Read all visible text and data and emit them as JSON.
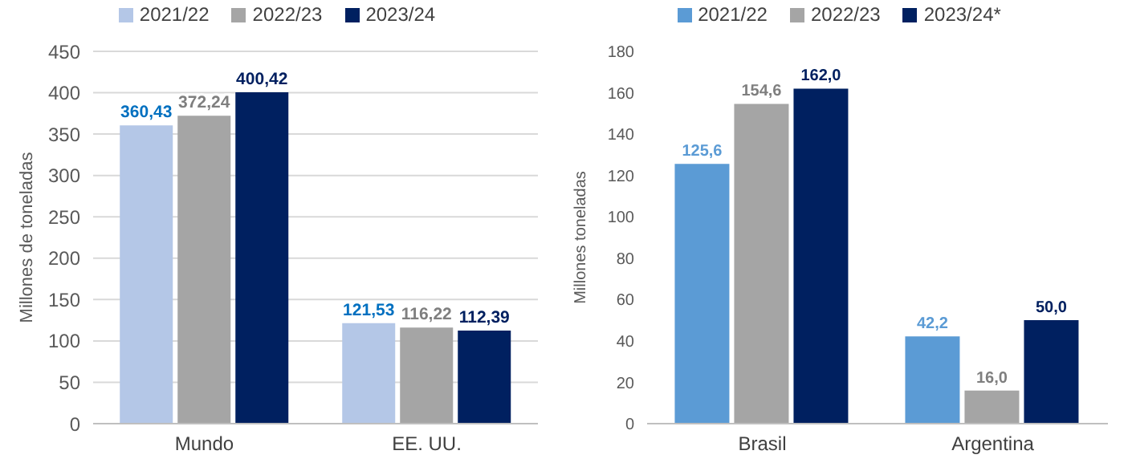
{
  "chart_data": [
    {
      "type": "bar",
      "ylabel": "Millones de toneladas",
      "categories": [
        "Mundo",
        "EE. UU."
      ],
      "series": [
        {
          "name": "2021/22",
          "color": "#b4c7e7",
          "values": [
            360.43,
            121.53
          ],
          "value_labels": [
            "360,43",
            "121,53"
          ]
        },
        {
          "name": "2022/23",
          "color": "#a5a5a5",
          "values": [
            372.24,
            116.22
          ],
          "value_labels": [
            "372,24",
            "116,22"
          ]
        },
        {
          "name": "2023/24",
          "color": "#002060",
          "values": [
            400.42,
            112.39
          ],
          "value_labels": [
            "400,42",
            "112,39"
          ]
        }
      ],
      "ylim": [
        0,
        450
      ],
      "yticks": [
        0,
        50,
        100,
        150,
        200,
        250,
        300,
        350,
        400,
        450
      ],
      "grid": "y",
      "legend": "top"
    },
    {
      "type": "bar",
      "ylabel": "Millones toneladas",
      "categories": [
        "Brasil",
        "Argentina"
      ],
      "series": [
        {
          "name": "2021/22",
          "color": "#5b9bd5",
          "values": [
            125.6,
            42.2
          ],
          "value_labels": [
            "125,6",
            "42,2"
          ]
        },
        {
          "name": "2022/23",
          "color": "#a5a5a5",
          "values": [
            154.6,
            16.0
          ],
          "value_labels": [
            "154,6",
            "16,0"
          ]
        },
        {
          "name": "2023/24*",
          "color": "#002060",
          "values": [
            162.0,
            50.0
          ],
          "value_labels": [
            "162,0",
            "50,0"
          ]
        }
      ],
      "ylim": [
        0,
        180
      ],
      "yticks": [
        0,
        20,
        40,
        60,
        80,
        100,
        120,
        140,
        160,
        180
      ],
      "grid": false,
      "legend": "top"
    }
  ]
}
